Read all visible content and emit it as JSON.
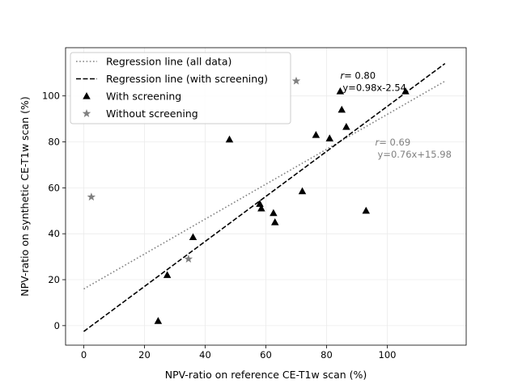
{
  "chart_data": {
    "type": "scatter",
    "title": "",
    "xlabel": "NPV-ratio on reference CE-T1w scan (%)",
    "ylabel": "NPV-ratio on synthetic CE-T1w scan (%)",
    "xlim": [
      -6,
      126
    ],
    "ylim": [
      -8.5,
      121
    ],
    "xticks": [
      0,
      20,
      40,
      60,
      80,
      100
    ],
    "yticks": [
      0,
      20,
      40,
      60,
      80,
      100
    ],
    "grid": true,
    "legend_position": "top-left",
    "series": [
      {
        "name": "With screening",
        "marker": "triangle",
        "color": "#000000",
        "points": [
          [
            24.5,
            2
          ],
          [
            27.5,
            22
          ],
          [
            36,
            38.5
          ],
          [
            48,
            81
          ],
          [
            58,
            53
          ],
          [
            58.5,
            51
          ],
          [
            62.5,
            49
          ],
          [
            63,
            45
          ],
          [
            72,
            58.5
          ],
          [
            76.5,
            83
          ],
          [
            81,
            81.5
          ],
          [
            84.5,
            102
          ],
          [
            85,
            94
          ],
          [
            86.5,
            86.5
          ],
          [
            93,
            50
          ],
          [
            106,
            102
          ]
        ]
      },
      {
        "name": "Without screening",
        "marker": "star",
        "color": "#808080",
        "points": [
          [
            2.5,
            56
          ],
          [
            34.5,
            29
          ],
          [
            70,
            106.5
          ]
        ]
      }
    ],
    "lines": [
      {
        "name": "Regression line (all data)",
        "style": "dotted",
        "color": "#808080",
        "slope": 0.76,
        "intercept": 15.98,
        "x_range": [
          0,
          119
        ]
      },
      {
        "name": "Regression line (with screening)",
        "style": "dashed",
        "color": "#000000",
        "slope": 0.98,
        "intercept": -2.54,
        "x_range": [
          0,
          119
        ]
      }
    ],
    "annotations": [
      {
        "name": "r-with-screening",
        "r_label": "r",
        "r_value": "= 0.80",
        "equation": "y=0.98x-2.54",
        "color": "#000000",
        "x": 84.5,
        "y": 107.5
      },
      {
        "name": "r-all-data",
        "r_label": "r",
        "r_value": "= 0.69",
        "equation": "y=0.76x+15.98",
        "color": "#808080",
        "x": 96,
        "y": 78.5
      }
    ]
  }
}
